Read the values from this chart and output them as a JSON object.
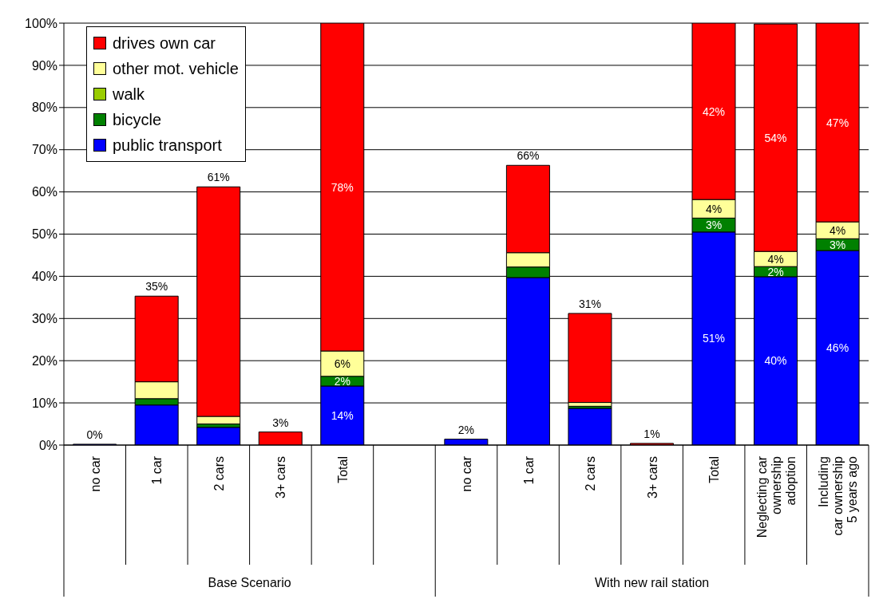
{
  "chart_data": {
    "type": "bar",
    "stacked": true,
    "categories": [
      "no car",
      "1 car",
      "2 cars",
      "3+ cars",
      "Total",
      null,
      "no car",
      "1 car",
      "2 cars",
      "3+ cars",
      "Total",
      "Neglecting car\nownership\nadoption",
      "Including\ncar ownership\n5 years ago"
    ],
    "series": [
      {
        "name": "public transport",
        "color": "#0000ff",
        "values": [
          0.2,
          9.5,
          4.2,
          null,
          14.0,
          null,
          1.4,
          39.7,
          8.7,
          null,
          50.5,
          39.9,
          46.1
        ],
        "value_labels": [
          null,
          null,
          null,
          null,
          "14%",
          null,
          null,
          null,
          null,
          null,
          "51%",
          "40%",
          "46%"
        ]
      },
      {
        "name": "bicycle",
        "color": "#008000",
        "values": [
          0,
          1.5,
          0.8,
          0,
          2.3,
          null,
          0,
          2.5,
          0.5,
          0,
          3.3,
          2.4,
          2.8
        ],
        "value_labels": [
          null,
          null,
          null,
          null,
          "2%",
          null,
          null,
          null,
          null,
          null,
          "3%",
          "2%",
          "3%"
        ]
      },
      {
        "name": "walk",
        "color": "#99cc00",
        "values": [
          0,
          0,
          0,
          0,
          0,
          null,
          0,
          0,
          0,
          0,
          0,
          0,
          0
        ]
      },
      {
        "name": "other mot. vehicle",
        "color": "#ffff99",
        "values": [
          0,
          4.0,
          1.8,
          0,
          6.0,
          null,
          0,
          3.4,
          0.9,
          0,
          4.4,
          3.6,
          4.0
        ],
        "value_labels": [
          null,
          null,
          null,
          null,
          "6%",
          null,
          null,
          null,
          null,
          null,
          "4%",
          "4%",
          "4%"
        ]
      },
      {
        "name": "drives own car",
        "color": "#ff0000",
        "values": [
          0,
          20.3,
          54.4,
          3.1,
          77.7,
          null,
          0,
          20.7,
          21.1,
          0.4,
          41.8,
          53.9,
          47.1
        ],
        "value_labels": [
          null,
          null,
          null,
          null,
          "78%",
          null,
          null,
          null,
          null,
          null,
          "42%",
          "54%",
          "47%"
        ]
      }
    ],
    "totals": [
      "0%",
      "35%",
      "61%",
      "3%",
      null,
      null,
      "2%",
      "66%",
      "31%",
      "1%",
      null,
      null,
      null
    ],
    "ylim": [
      0,
      100
    ],
    "yticks": [
      {
        "value": 0,
        "label": "0%"
      },
      {
        "value": 10,
        "label": "10%"
      },
      {
        "value": 20,
        "label": "20%"
      },
      {
        "value": 30,
        "label": "30%"
      },
      {
        "value": 40,
        "label": "40%"
      },
      {
        "value": 50,
        "label": "50%"
      },
      {
        "value": 60,
        "label": "60%"
      },
      {
        "value": 70,
        "label": "70%"
      },
      {
        "value": 80,
        "label": "80%"
      },
      {
        "value": 90,
        "label": "90%"
      },
      {
        "value": 100,
        "label": "100%"
      }
    ],
    "grid": "y",
    "legend": "top left",
    "annotations": [
      "Base Scenario",
      "With new rail station"
    ]
  }
}
